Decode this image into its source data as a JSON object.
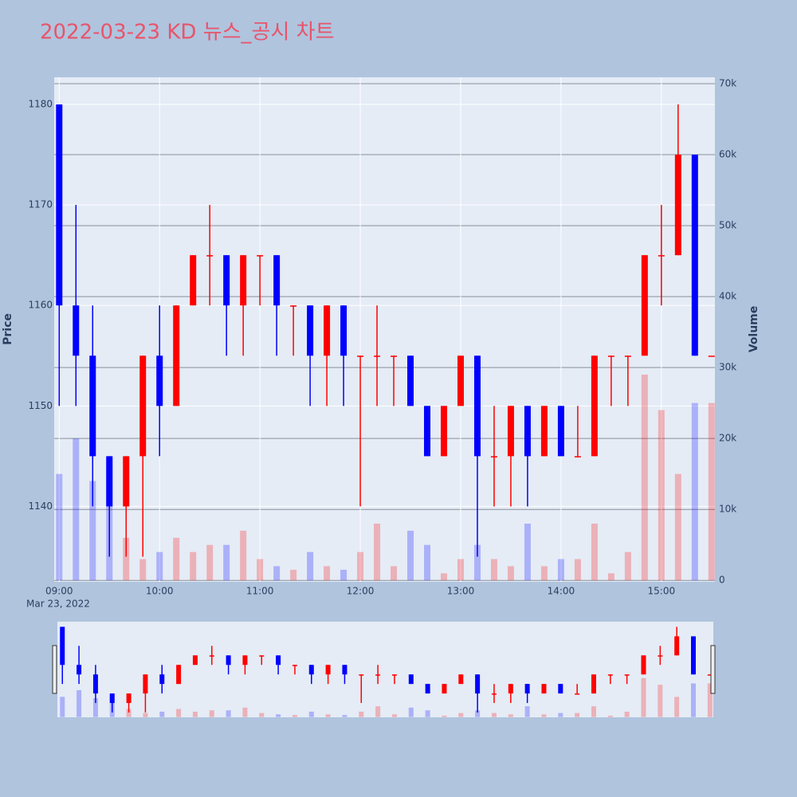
{
  "chart_data": {
    "type": "candlestick",
    "title": "2022-03-23 KD 뉴스_공시 차트",
    "x_axis_sublabel": "Mar 23, 2022",
    "y_axis_title": "Price",
    "y2_axis_title": "Volume",
    "increasing_color": "#ff0000",
    "decreasing_color": "#0000ff",
    "x": [
      "09:00",
      "09:10",
      "09:20",
      "09:30",
      "09:40",
      "09:50",
      "10:00",
      "10:10",
      "10:20",
      "10:30",
      "10:40",
      "10:50",
      "11:00",
      "11:10",
      "11:20",
      "11:30",
      "11:40",
      "11:50",
      "12:00",
      "12:10",
      "12:20",
      "12:30",
      "12:40",
      "12:50",
      "13:00",
      "13:10",
      "13:20",
      "13:30",
      "13:40",
      "13:50",
      "14:00",
      "14:10",
      "14:20",
      "14:30",
      "14:40",
      "14:50",
      "15:00",
      "15:10",
      "15:20",
      "15:30"
    ],
    "open": [
      1180,
      1160,
      1155,
      1145,
      1140,
      1145,
      1155,
      1150,
      1160,
      1165,
      1165,
      1160,
      1165,
      1165,
      1160,
      1160,
      1155,
      1160,
      1155,
      1155,
      1155,
      1155,
      1150,
      1145,
      1150,
      1155,
      1145,
      1145,
      1150,
      1145,
      1150,
      1145,
      1145,
      1155,
      1155,
      1155,
      1165,
      1165,
      1175,
      1155
    ],
    "high": [
      1180,
      1170,
      1160,
      1145,
      1145,
      1155,
      1160,
      1160,
      1165,
      1170,
      1165,
      1165,
      1165,
      1165,
      1160,
      1160,
      1160,
      1160,
      1155,
      1160,
      1155,
      1155,
      1150,
      1150,
      1155,
      1155,
      1150,
      1150,
      1150,
      1150,
      1150,
      1150,
      1155,
      1155,
      1155,
      1165,
      1170,
      1180,
      1175,
      1155
    ],
    "low": [
      1150,
      1150,
      1140,
      1135,
      1135,
      1135,
      1145,
      1150,
      1160,
      1160,
      1155,
      1155,
      1160,
      1155,
      1155,
      1150,
      1150,
      1150,
      1140,
      1150,
      1150,
      1150,
      1145,
      1145,
      1150,
      1135,
      1140,
      1140,
      1140,
      1145,
      1145,
      1145,
      1145,
      1150,
      1150,
      1155,
      1160,
      1165,
      1155,
      1155
    ],
    "close": [
      1160,
      1155,
      1145,
      1140,
      1145,
      1155,
      1150,
      1160,
      1165,
      1165,
      1160,
      1165,
      1165,
      1160,
      1160,
      1155,
      1160,
      1155,
      1155,
      1155,
      1155,
      1150,
      1145,
      1150,
      1155,
      1145,
      1145,
      1150,
      1145,
      1150,
      1145,
      1145,
      1155,
      1155,
      1155,
      1165,
      1165,
      1175,
      1155,
      1155
    ],
    "volume": [
      15000,
      20000,
      14000,
      17000,
      6000,
      3000,
      4000,
      6000,
      4000,
      5000,
      5000,
      7000,
      3000,
      2000,
      1500,
      4000,
      2000,
      1500,
      4000,
      8000,
      2000,
      7000,
      5000,
      1000,
      3000,
      5000,
      3000,
      2000,
      8000,
      2000,
      3000,
      3000,
      8000,
      1000,
      4000,
      29000,
      24000,
      15000,
      25000,
      25000
    ],
    "xlim": [
      "08:57",
      "15:32"
    ],
    "xticks": [
      "09:00",
      "10:00",
      "11:00",
      "12:00",
      "13:00",
      "14:00",
      "15:00"
    ],
    "ylim": [
      1132.5,
      1182.7
    ],
    "yticks": [
      1140,
      1150,
      1160,
      1170,
      1180
    ],
    "y2lim": [
      -200,
      70900
    ],
    "y2ticks": [
      {
        "value": 0,
        "label": "0"
      },
      {
        "value": 10000,
        "label": "10k"
      },
      {
        "value": 20000,
        "label": "20k"
      },
      {
        "value": 30000,
        "label": "30k"
      },
      {
        "value": 40000,
        "label": "40k"
      },
      {
        "value": 50000,
        "label": "50k"
      },
      {
        "value": 60000,
        "label": "60k"
      },
      {
        "value": 70000,
        "label": "70k"
      }
    ],
    "grid": true,
    "rangeslider": true
  }
}
